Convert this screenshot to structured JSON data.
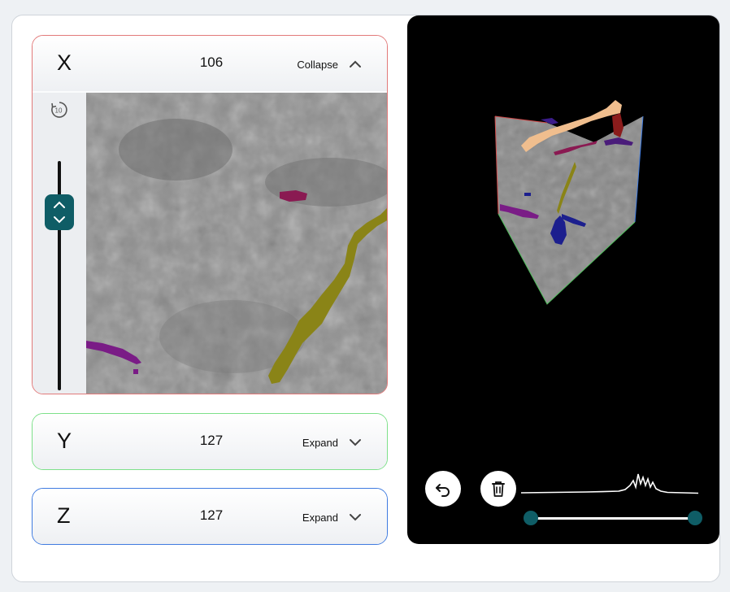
{
  "panels": {
    "x": {
      "axis": "X",
      "value": "106",
      "toggle_label": "Collapse",
      "state": "expanded",
      "accent": "#e27a7a"
    },
    "y": {
      "axis": "Y",
      "value": "127",
      "toggle_label": "Expand",
      "state": "collapsed",
      "accent": "#7ee08a"
    },
    "z": {
      "axis": "Z",
      "value": "127",
      "toggle_label": "Expand",
      "state": "collapsed",
      "accent": "#3f7be0"
    }
  },
  "x_panel_controls": {
    "timer_icon": "timer-10-icon",
    "slider_thumb_icon": "chevron-up-down-icon"
  },
  "viewer": {
    "background": "#000000",
    "undo_icon": "undo-icon",
    "delete_icon": "trash-icon",
    "intensity_range": {
      "min": 0,
      "max": 1
    }
  },
  "colors": {
    "control_accent": "#0f5d66",
    "segment_magenta": "#8a1a52",
    "segment_purple": "#7a1c86",
    "segment_olive": "#8a8417",
    "segment_peach": "#f0be8e",
    "segment_darkred": "#8b1c1c",
    "segment_navy": "#1c1f8e"
  }
}
